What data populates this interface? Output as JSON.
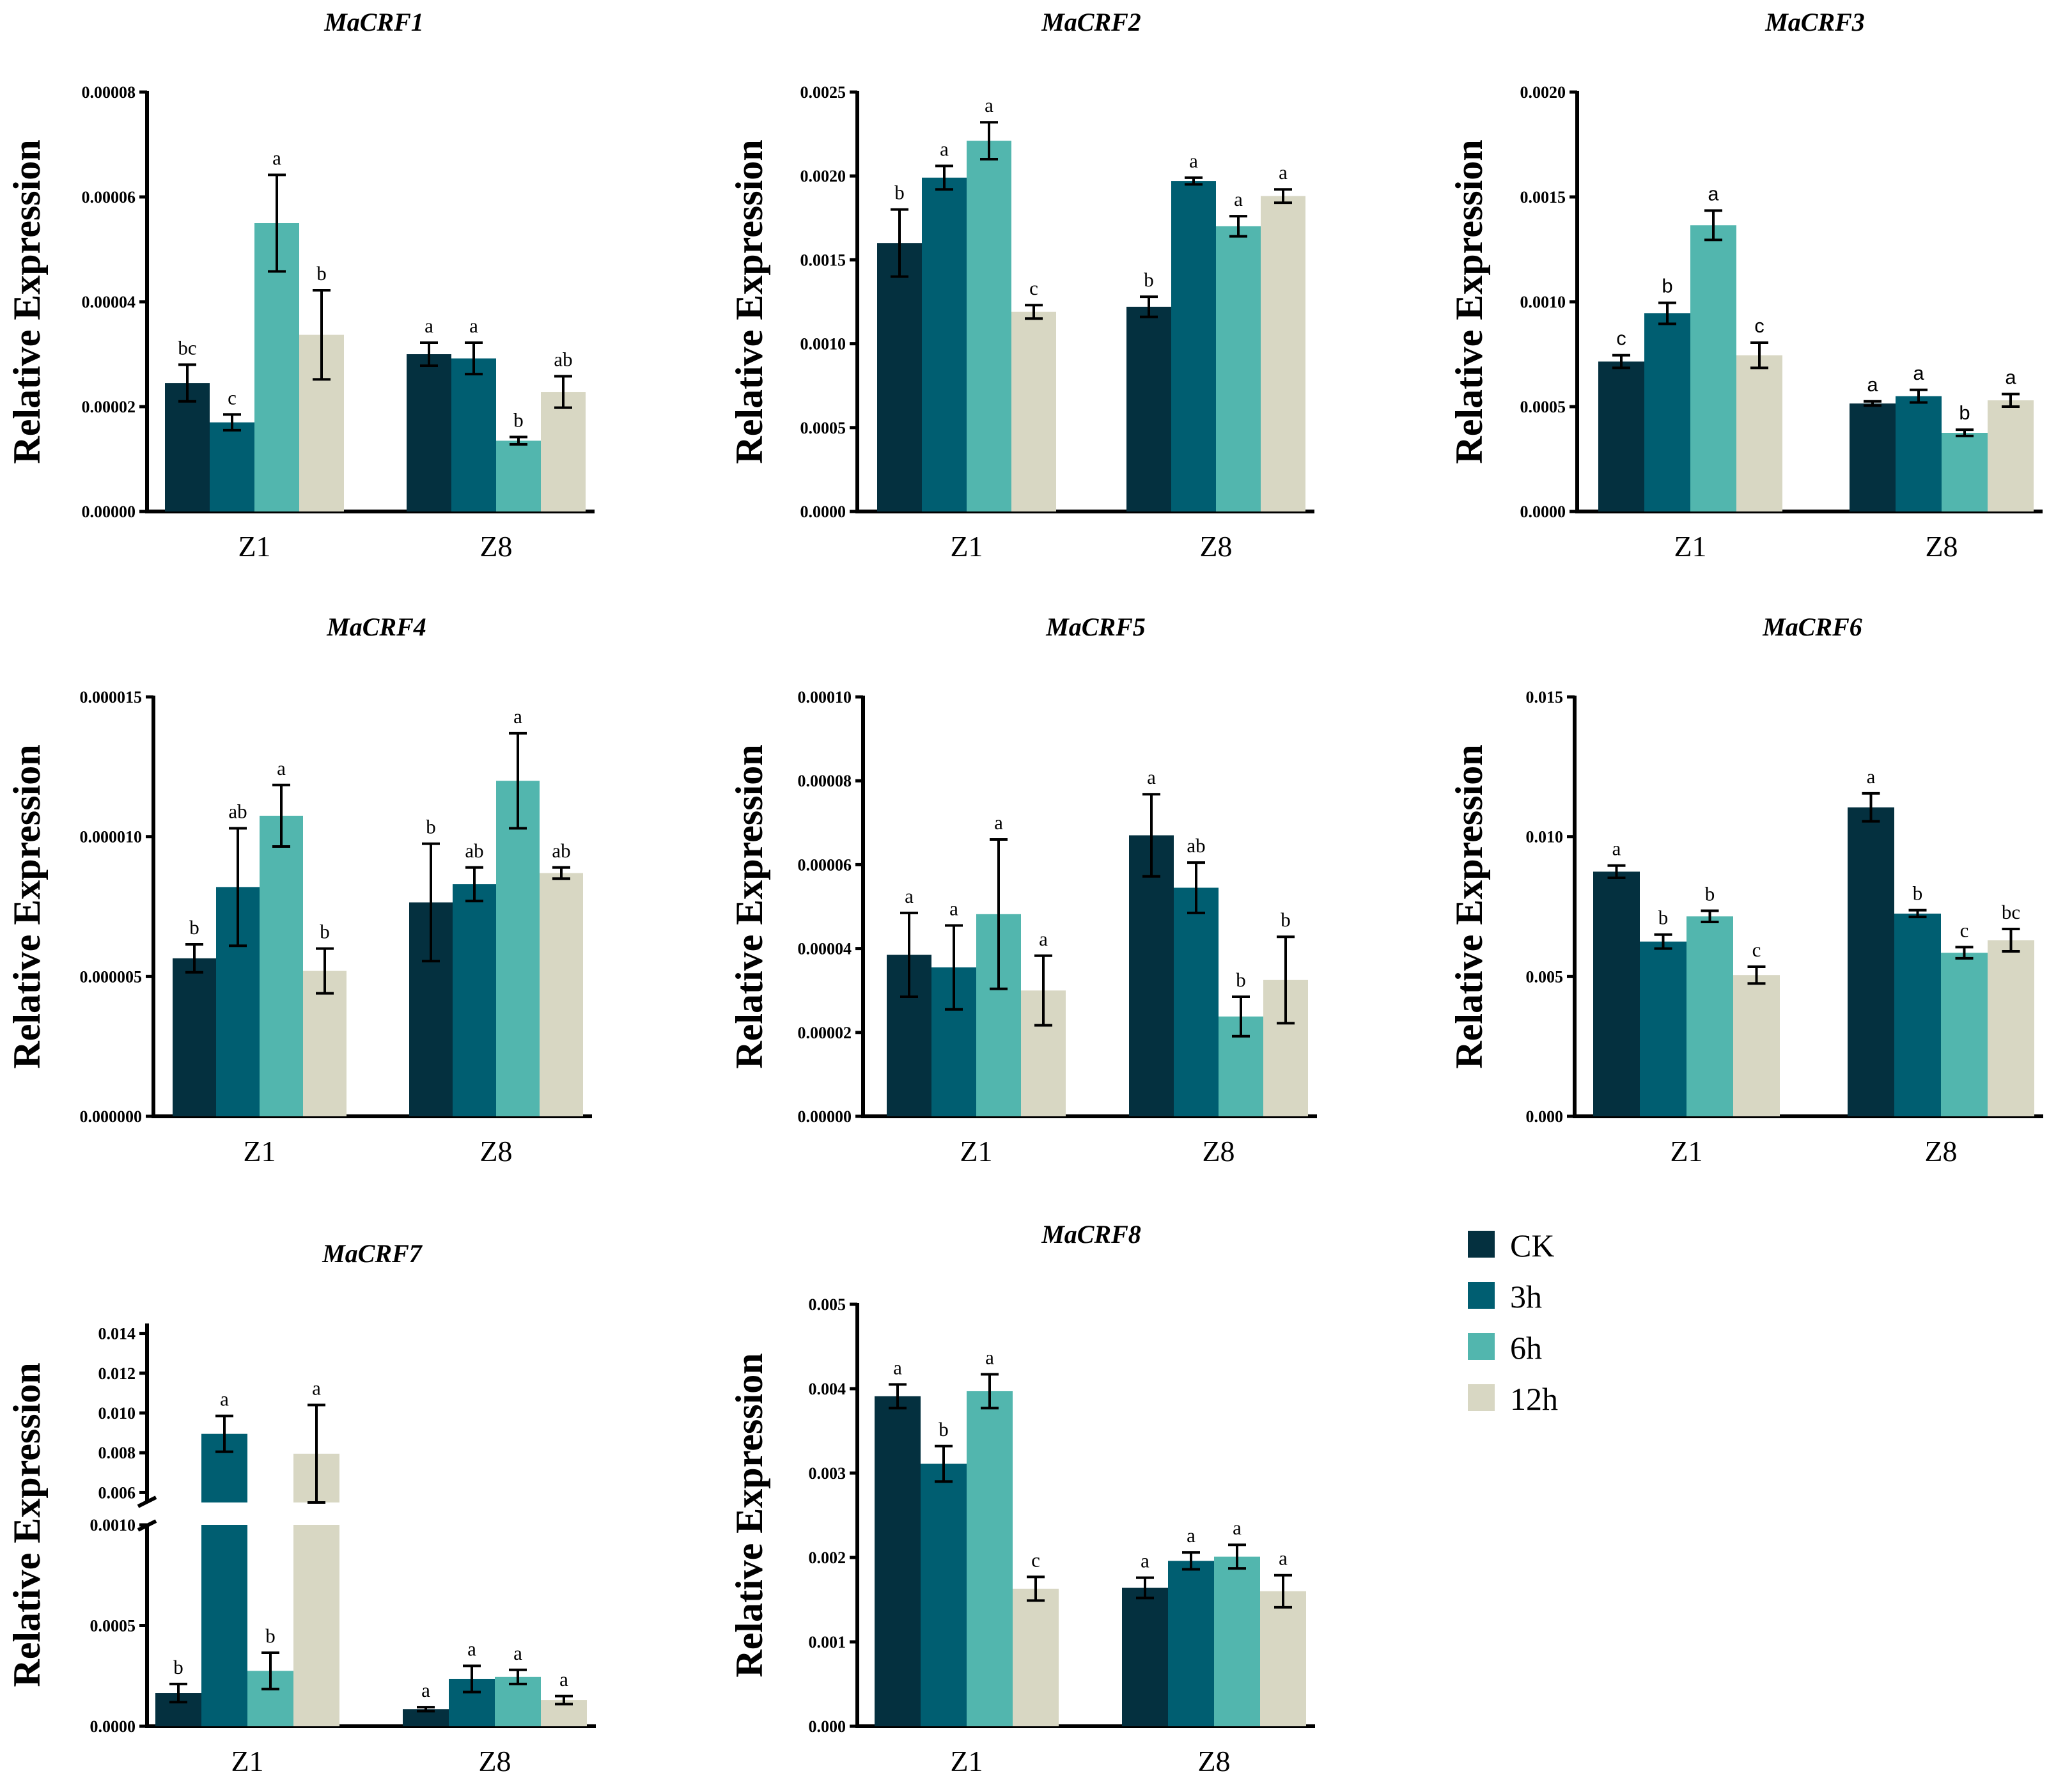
{
  "colors": {
    "CK": "#04303f",
    "3h": "#005e71",
    "6h": "#52b6ae",
    "12h": "#d8d7c3",
    "axis": "#000000"
  },
  "legend": {
    "items": [
      {
        "name": "CK",
        "color": "#04303f"
      },
      {
        "name": "3h",
        "color": "#005e71"
      },
      {
        "name": "6h",
        "color": "#52b6ae"
      },
      {
        "name": "12h",
        "color": "#d8d7c3"
      }
    ]
  },
  "chart_data": [
    {
      "type": "bar",
      "title": "MaCRF1",
      "ylabel": "Relative Expression",
      "categories": [
        "Z1",
        "Z8"
      ],
      "ylim": [
        0,
        8e-05
      ],
      "yticks": [
        "0.00000",
        "0.00002",
        "0.00004",
        "0.00006",
        "0.00008"
      ],
      "series": [
        {
          "name": "CK",
          "values": [
            2.45e-05,
            3e-05
          ],
          "errors": [
            3.5e-06,
            2.2e-06
          ],
          "letters": [
            "bc",
            "a"
          ]
        },
        {
          "name": "3h",
          "values": [
            1.7e-05,
            2.92e-05
          ],
          "errors": [
            1.5e-06,
            3e-06
          ],
          "letters": [
            "c",
            "a"
          ]
        },
        {
          "name": "6h",
          "values": [
            5.5e-05,
            1.35e-05
          ],
          "errors": [
            9.2e-06,
            7e-07
          ],
          "letters": [
            "a",
            "b"
          ]
        },
        {
          "name": "12h",
          "values": [
            3.37e-05,
            2.28e-05
          ],
          "errors": [
            8.5e-06,
            3e-06
          ],
          "letters": [
            "b",
            "ab"
          ]
        }
      ]
    },
    {
      "type": "bar",
      "title": "MaCRF2",
      "ylabel": "Relative Expression",
      "categories": [
        "Z1",
        "Z8"
      ],
      "ylim": [
        0,
        0.0025
      ],
      "yticks": [
        "0.0000",
        "0.0005",
        "0.0010",
        "0.0015",
        "0.0020",
        "0.0025"
      ],
      "series": [
        {
          "name": "CK",
          "values": [
            0.0016,
            0.00122
          ],
          "errors": [
            0.0002,
            6e-05
          ],
          "letters": [
            "b",
            "b"
          ]
        },
        {
          "name": "3h",
          "values": [
            0.00199,
            0.00197
          ],
          "errors": [
            7e-05,
            2e-05
          ],
          "letters": [
            "a",
            "a"
          ]
        },
        {
          "name": "6h",
          "values": [
            0.00221,
            0.0017
          ],
          "errors": [
            0.00011,
            6e-05
          ],
          "letters": [
            "a",
            "a"
          ]
        },
        {
          "name": "12h",
          "values": [
            0.00119,
            0.00188
          ],
          "errors": [
            4e-05,
            4e-05
          ],
          "letters": [
            "c",
            "a"
          ]
        }
      ]
    },
    {
      "type": "bar",
      "title": "MaCRF3",
      "ylabel": "Relative Expression",
      "categories": [
        "Z1",
        "Z8"
      ],
      "ylim": [
        0,
        0.002
      ],
      "yticks": [
        "0.0000",
        "0.0005",
        "0.0010",
        "0.0015",
        "0.0020"
      ],
      "series": [
        {
          "name": "CK",
          "values": [
            0.000715,
            0.000515
          ],
          "errors": [
            3e-05,
            1e-05
          ],
          "letters": [
            "c",
            "a"
          ]
        },
        {
          "name": "3h",
          "values": [
            0.000945,
            0.00055
          ],
          "errors": [
            5e-05,
            3e-05
          ],
          "letters": [
            "b",
            "a"
          ]
        },
        {
          "name": "6h",
          "values": [
            0.001365,
            0.000375
          ],
          "errors": [
            7e-05,
            1.5e-05
          ],
          "letters": [
            "a",
            "b"
          ]
        },
        {
          "name": "12h",
          "values": [
            0.000745,
            0.00053
          ],
          "errors": [
            6e-05,
            3e-05
          ],
          "letters": [
            "c",
            "a"
          ]
        }
      ]
    },
    {
      "type": "bar",
      "title": "MaCRF4",
      "ylabel": "Relative Expression",
      "categories": [
        "Z1",
        "Z8"
      ],
      "ylim": [
        0,
        1.5e-05
      ],
      "yticks": [
        "0.000000",
        "0.000005",
        "0.000010",
        "0.000015"
      ],
      "series": [
        {
          "name": "CK",
          "values": [
            5.65e-06,
            7.65e-06
          ],
          "errors": [
            5e-07,
            2.1e-06
          ],
          "letters": [
            "b",
            "b"
          ]
        },
        {
          "name": "3h",
          "values": [
            8.2e-06,
            8.3e-06
          ],
          "errors": [
            2.1e-06,
            6e-07
          ],
          "letters": [
            "ab",
            "ab"
          ]
        },
        {
          "name": "6h",
          "values": [
            1.075e-05,
            1.2e-05
          ],
          "errors": [
            1.1e-06,
            1.7e-06
          ],
          "letters": [
            "a",
            "a"
          ]
        },
        {
          "name": "12h",
          "values": [
            5.2e-06,
            8.7e-06
          ],
          "errors": [
            8e-07,
            2e-07
          ],
          "letters": [
            "b",
            "ab"
          ]
        }
      ]
    },
    {
      "type": "bar",
      "title": "MaCRF5",
      "ylabel": "Relative Expression",
      "categories": [
        "Z1",
        "Z8"
      ],
      "ylim": [
        0,
        0.0001
      ],
      "yticks": [
        "0.00000",
        "0.00002",
        "0.00004",
        "0.00006",
        "0.00008",
        "0.00010"
      ],
      "series": [
        {
          "name": "CK",
          "values": [
            3.85e-05,
            6.7e-05
          ],
          "errors": [
            1e-05,
            9.8e-06
          ],
          "letters": [
            "a",
            "a"
          ]
        },
        {
          "name": "3h",
          "values": [
            3.55e-05,
            5.45e-05
          ],
          "errors": [
            1e-05,
            6e-06
          ],
          "letters": [
            "a",
            "ab"
          ]
        },
        {
          "name": "6h",
          "values": [
            4.82e-05,
            2.38e-05
          ],
          "errors": [
            1.78e-05,
            4.7e-06
          ],
          "letters": [
            "a",
            "b"
          ]
        },
        {
          "name": "12h",
          "values": [
            3e-05,
            3.25e-05
          ],
          "errors": [
            8.3e-06,
            1.03e-05
          ],
          "letters": [
            "a",
            "b"
          ]
        }
      ]
    },
    {
      "type": "bar",
      "title": "MaCRF6",
      "ylabel": "Relative Expression",
      "categories": [
        "Z1",
        "Z8"
      ],
      "ylim": [
        0,
        0.015
      ],
      "yticks": [
        "0.000",
        "0.005",
        "0.010",
        "0.015"
      ],
      "series": [
        {
          "name": "CK",
          "values": [
            0.00875,
            0.01105
          ],
          "errors": [
            0.00022,
            0.0005
          ],
          "letters": [
            "a",
            "a"
          ]
        },
        {
          "name": "3h",
          "values": [
            0.00625,
            0.00725
          ],
          "errors": [
            0.00025,
            0.00012
          ],
          "letters": [
            "b",
            "b"
          ]
        },
        {
          "name": "6h",
          "values": [
            0.00715,
            0.00585
          ],
          "errors": [
            0.0002,
            0.0002
          ],
          "letters": [
            "b",
            "c"
          ]
        },
        {
          "name": "12h",
          "values": [
            0.00505,
            0.0063
          ],
          "errors": [
            0.0003,
            0.0004
          ],
          "letters": [
            "c",
            "bc"
          ]
        }
      ]
    },
    {
      "type": "bar",
      "title": "MaCRF7",
      "ylabel": "Relative Expression",
      "categories": [
        "Z1",
        "Z8"
      ],
      "broken_axis": true,
      "ylim_lower": [
        0,
        0.001
      ],
      "yticks_lower": [
        "0.0000",
        "0.0005",
        "0.0010"
      ],
      "ylim_upper": [
        0.0055,
        0.0145
      ],
      "yticks_upper": [
        "0.006",
        "0.008",
        "0.010",
        "0.012",
        "0.014"
      ],
      "series": [
        {
          "name": "CK",
          "values": [
            0.000165,
            8.5e-05
          ],
          "errors": [
            4.5e-05,
            1e-05
          ],
          "letters": [
            "b",
            "a"
          ]
        },
        {
          "name": "3h",
          "values": [
            0.00895,
            0.000235
          ],
          "errors": [
            0.0009,
            6.5e-05
          ],
          "letters": [
            "a",
            "a"
          ]
        },
        {
          "name": "6h",
          "values": [
            0.000275,
            0.000245
          ],
          "errors": [
            9e-05,
            3.5e-05
          ],
          "letters": [
            "b",
            "a"
          ]
        },
        {
          "name": "12h",
          "values": [
            0.00795,
            0.00013
          ],
          "errors": [
            0.00245,
            2e-05
          ],
          "letters": [
            "a",
            "a"
          ]
        }
      ]
    },
    {
      "type": "bar",
      "title": "MaCRF8",
      "ylabel": "Relative Expression",
      "categories": [
        "Z1",
        "Z8"
      ],
      "ylim": [
        0,
        0.005
      ],
      "yticks": [
        "0.000",
        "0.001",
        "0.002",
        "0.003",
        "0.004",
        "0.005"
      ],
      "series": [
        {
          "name": "CK",
          "values": [
            0.00391,
            0.00164
          ],
          "errors": [
            0.00014,
            0.00012
          ],
          "letters": [
            "a",
            "a"
          ]
        },
        {
          "name": "3h",
          "values": [
            0.00311,
            0.00196
          ],
          "errors": [
            0.00021,
            0.0001
          ],
          "letters": [
            "b",
            "a"
          ]
        },
        {
          "name": "6h",
          "values": [
            0.00397,
            0.00201
          ],
          "errors": [
            0.0002,
            0.00014
          ],
          "letters": [
            "a",
            "a"
          ]
        },
        {
          "name": "12h",
          "values": [
            0.00163,
            0.0016
          ],
          "errors": [
            0.00014,
            0.00019
          ],
          "letters": [
            "c",
            "a"
          ]
        }
      ]
    }
  ]
}
